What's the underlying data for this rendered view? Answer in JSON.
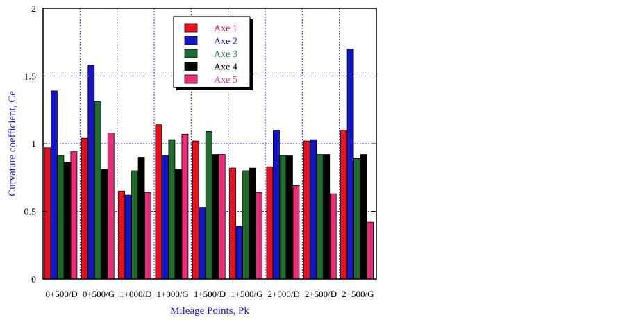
{
  "chart_data": {
    "type": "bar",
    "xlabel": "Mileage Points, Pk",
    "ylabel": "Curvature coefficient, Ce",
    "ylim": [
      0,
      2
    ],
    "yticks": [
      "0",
      "0.5",
      "1",
      "1.5",
      "2"
    ],
    "grid": true,
    "legend_position": "top-right",
    "categories": [
      "0+500/D",
      "0+500/G",
      "1+000/D",
      "1+000/G",
      "1+500/D",
      "1+500/G",
      "2+000/D",
      "2+500/D",
      "2+500/G"
    ],
    "series": [
      {
        "name": "Axe 1",
        "color": "#e8101e",
        "label_color": "#e0103a",
        "values": [
          0.97,
          1.04,
          0.65,
          1.14,
          1.02,
          0.82,
          0.83,
          1.02,
          1.1
        ]
      },
      {
        "name": "Axe 2",
        "color": "#1414c8",
        "label_color": "#1414c8",
        "values": [
          1.39,
          1.58,
          0.62,
          0.91,
          0.53,
          0.39,
          1.1,
          1.03,
          1.7
        ]
      },
      {
        "name": "Axe 3",
        "color": "#1f6b2e",
        "label_color": "#1f8a3a",
        "values": [
          0.91,
          1.31,
          0.8,
          1.03,
          1.09,
          0.8,
          0.91,
          0.92,
          0.89
        ]
      },
      {
        "name": "Axe 4",
        "color": "#000000",
        "label_color": "#000000",
        "values": [
          0.86,
          0.81,
          0.9,
          0.81,
          0.92,
          0.82,
          0.91,
          0.92,
          0.92
        ]
      },
      {
        "name": "Axe 5",
        "color": "#e8307a",
        "label_color": "#e8409a",
        "values": [
          0.94,
          1.08,
          0.64,
          1.07,
          0.92,
          0.64,
          0.69,
          0.63,
          0.42
        ]
      }
    ]
  }
}
